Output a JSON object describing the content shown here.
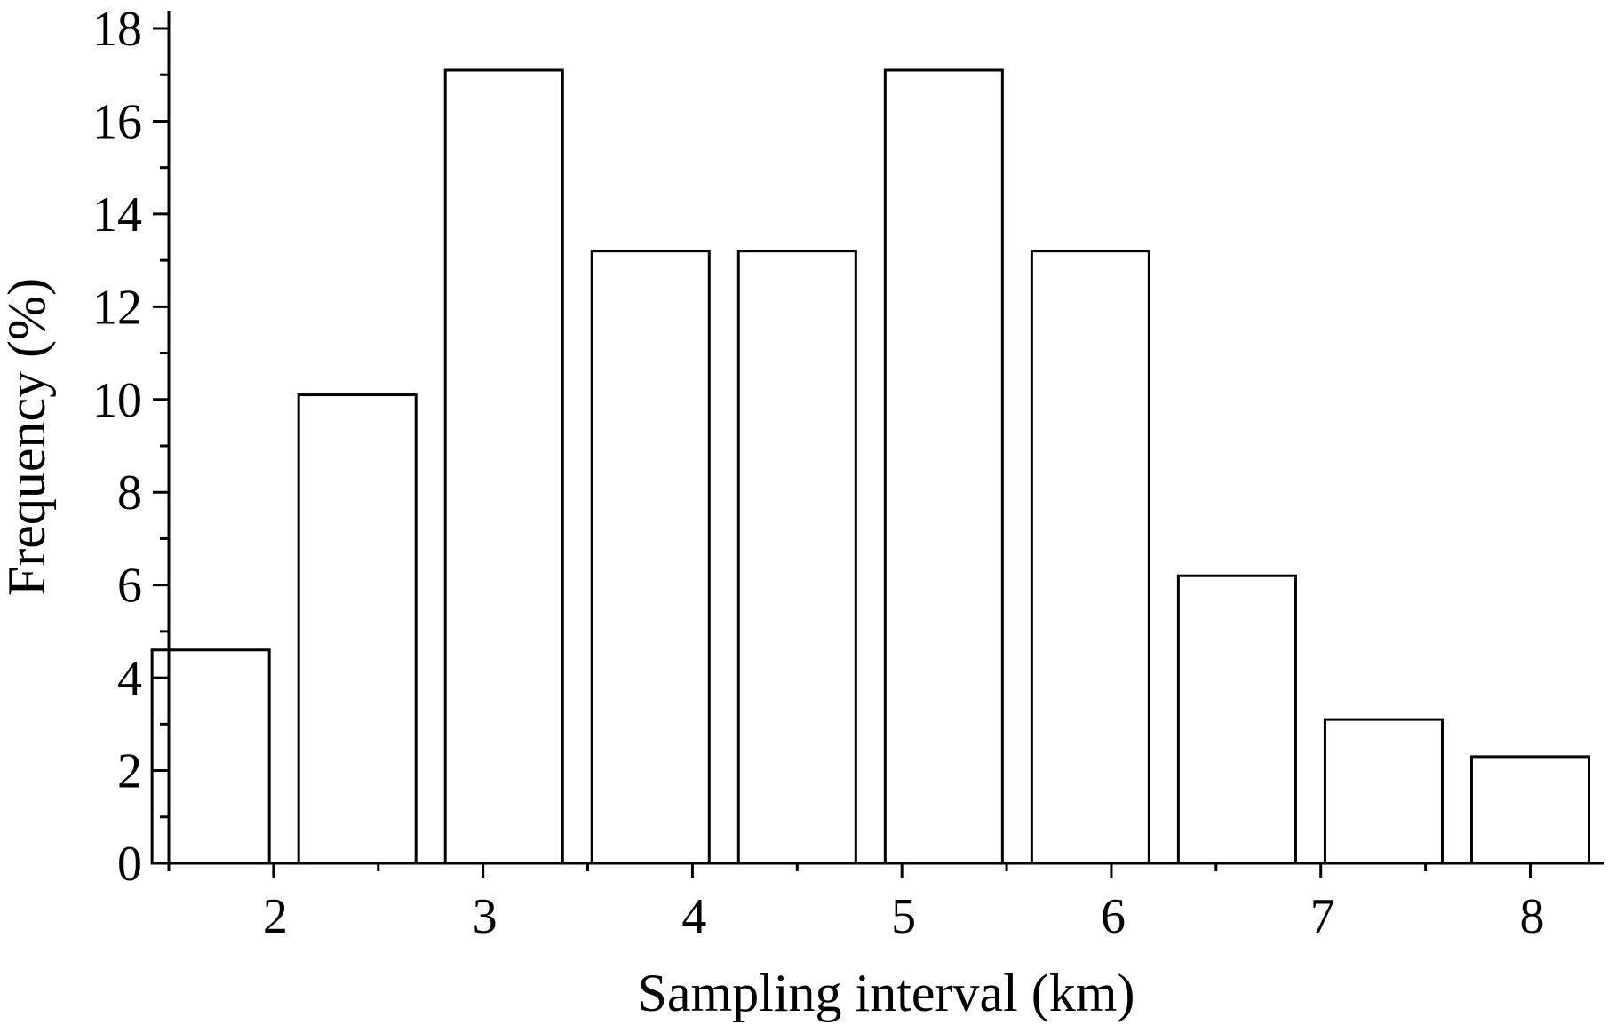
{
  "chart_data": {
    "type": "bar",
    "title": "",
    "xlabel": "Sampling interval (km)",
    "ylabel": "Frequency (%)",
    "xlim": [
      1.5,
      8.35
    ],
    "ylim": [
      0,
      18
    ],
    "x_ticks": [
      2,
      3,
      4,
      5,
      6,
      7,
      8
    ],
    "x_tick_labels": [
      "2",
      "3",
      "4",
      "5",
      "6",
      "7",
      "8"
    ],
    "x_minor_ticks": [
      1.5,
      2.5,
      3.5,
      4.5,
      5.5,
      6.5,
      7.5
    ],
    "y_ticks": [
      0,
      2,
      4,
      6,
      8,
      10,
      12,
      14,
      16,
      18
    ],
    "y_tick_labels": [
      "0",
      "2",
      "4",
      "6",
      "8",
      "10",
      "12",
      "14",
      "16",
      "18"
    ],
    "y_minor_ticks": [
      1,
      3,
      5,
      7,
      9,
      11,
      13,
      15,
      17
    ],
    "bar_width": 0.56,
    "grid": false,
    "legend": "none",
    "colors": {
      "bar_fill": "#ffffff",
      "bar_edge": "#000000",
      "axis": "#000000"
    },
    "bars": [
      {
        "x": 1.7,
        "value": 4.6
      },
      {
        "x": 2.4,
        "value": 10.1
      },
      {
        "x": 3.1,
        "value": 17.1
      },
      {
        "x": 3.8,
        "value": 13.2
      },
      {
        "x": 4.5,
        "value": 13.2
      },
      {
        "x": 5.2,
        "value": 17.1
      },
      {
        "x": 5.9,
        "value": 13.2
      },
      {
        "x": 6.6,
        "value": 6.2
      },
      {
        "x": 7.3,
        "value": 3.1
      },
      {
        "x": 8.0,
        "value": 2.3
      }
    ]
  }
}
